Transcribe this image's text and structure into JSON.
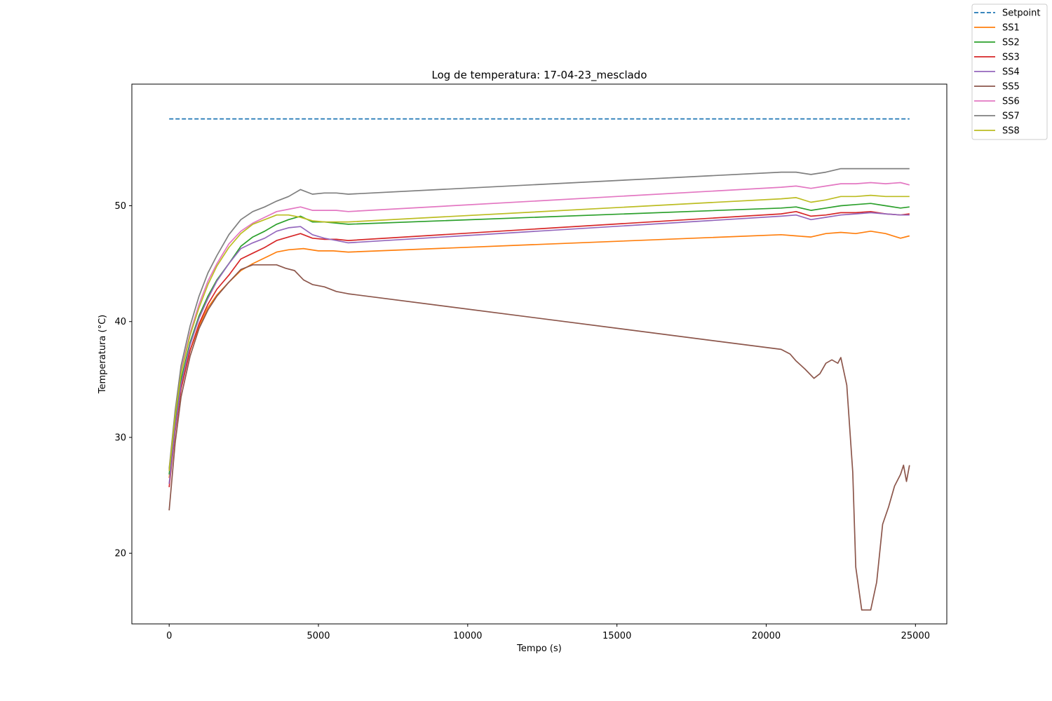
{
  "chart_data": {
    "type": "line",
    "title": "Log de temperatura: 17-04-23_mesclado",
    "xlabel": "Tempo (s)",
    "ylabel": "Temperatura (°C)",
    "xlim": [
      -1250,
      26050
    ],
    "ylim": [
      13.9,
      60.5
    ],
    "xticks": [
      0,
      5000,
      10000,
      15000,
      20000,
      25000
    ],
    "yticks": [
      20,
      30,
      40,
      50
    ],
    "grid": false,
    "legend_position": "top-right, outside plot",
    "series": [
      {
        "name": "Setpoint",
        "color": "#1f77b4",
        "dashed": true,
        "points": [
          [
            0,
            57.5
          ],
          [
            24800,
            57.5
          ]
        ]
      },
      {
        "name": "SS1",
        "color": "#ff7f0e",
        "dashed": false,
        "points": [
          [
            0,
            26.5
          ],
          [
            200,
            31
          ],
          [
            400,
            34.5
          ],
          [
            700,
            37.5
          ],
          [
            1000,
            39.6
          ],
          [
            1300,
            41.2
          ],
          [
            1600,
            42.3
          ],
          [
            2000,
            43.4
          ],
          [
            2400,
            44.4
          ],
          [
            2800,
            45
          ],
          [
            3200,
            45.5
          ],
          [
            3600,
            46
          ],
          [
            4000,
            46.2
          ],
          [
            4500,
            46.3
          ],
          [
            5000,
            46.1
          ],
          [
            5500,
            46.1
          ],
          [
            6000,
            46
          ],
          [
            20500,
            47.5
          ],
          [
            21000,
            47.4
          ],
          [
            21500,
            47.3
          ],
          [
            22000,
            47.6
          ],
          [
            22500,
            47.7
          ],
          [
            23000,
            47.6
          ],
          [
            23500,
            47.8
          ],
          [
            24000,
            47.6
          ],
          [
            24500,
            47.2
          ],
          [
            24800,
            47.4
          ]
        ]
      },
      {
        "name": "SS2",
        "color": "#2ca02c",
        "dashed": false,
        "points": [
          [
            0,
            26.8
          ],
          [
            200,
            31.5
          ],
          [
            400,
            35
          ],
          [
            700,
            38.2
          ],
          [
            1000,
            40.5
          ],
          [
            1300,
            42.2
          ],
          [
            1600,
            43.6
          ],
          [
            2000,
            45
          ],
          [
            2400,
            46.5
          ],
          [
            2800,
            47.3
          ],
          [
            3200,
            47.8
          ],
          [
            3600,
            48.4
          ],
          [
            4000,
            48.8
          ],
          [
            4400,
            49.1
          ],
          [
            4800,
            48.6
          ],
          [
            5200,
            48.6
          ],
          [
            5600,
            48.5
          ],
          [
            6000,
            48.4
          ],
          [
            20500,
            49.8
          ],
          [
            21000,
            49.9
          ],
          [
            21500,
            49.6
          ],
          [
            22000,
            49.8
          ],
          [
            22500,
            50
          ],
          [
            23000,
            50.1
          ],
          [
            23500,
            50.2
          ],
          [
            24000,
            50
          ],
          [
            24500,
            49.8
          ],
          [
            24800,
            49.9
          ]
        ]
      },
      {
        "name": "SS3",
        "color": "#d62728",
        "dashed": false,
        "points": [
          [
            0,
            25.7
          ],
          [
            200,
            30.5
          ],
          [
            400,
            34.2
          ],
          [
            700,
            37.5
          ],
          [
            1000,
            39.8
          ],
          [
            1300,
            41.5
          ],
          [
            1600,
            42.8
          ],
          [
            2000,
            44
          ],
          [
            2400,
            45.4
          ],
          [
            2800,
            45.9
          ],
          [
            3200,
            46.4
          ],
          [
            3600,
            47
          ],
          [
            4000,
            47.3
          ],
          [
            4400,
            47.6
          ],
          [
            4800,
            47.2
          ],
          [
            5200,
            47.1
          ],
          [
            5600,
            47.1
          ],
          [
            6000,
            47
          ],
          [
            20500,
            49.3
          ],
          [
            21000,
            49.5
          ],
          [
            21500,
            49.1
          ],
          [
            22000,
            49.2
          ],
          [
            22500,
            49.4
          ],
          [
            23000,
            49.4
          ],
          [
            23500,
            49.5
          ],
          [
            24000,
            49.3
          ],
          [
            24500,
            49.2
          ],
          [
            24800,
            49.3
          ]
        ]
      },
      {
        "name": "SS4",
        "color": "#9467bd",
        "dashed": false,
        "points": [
          [
            0,
            26
          ],
          [
            200,
            30.8
          ],
          [
            400,
            34.6
          ],
          [
            700,
            38
          ],
          [
            1000,
            40.3
          ],
          [
            1300,
            42
          ],
          [
            1600,
            43.5
          ],
          [
            2000,
            45
          ],
          [
            2400,
            46.3
          ],
          [
            2800,
            46.8
          ],
          [
            3200,
            47.2
          ],
          [
            3600,
            47.8
          ],
          [
            4000,
            48.1
          ],
          [
            4400,
            48.2
          ],
          [
            4800,
            47.5
          ],
          [
            5200,
            47.2
          ],
          [
            5600,
            47
          ],
          [
            6000,
            46.8
          ],
          [
            20500,
            49.1
          ],
          [
            21000,
            49.2
          ],
          [
            21500,
            48.8
          ],
          [
            22000,
            49
          ],
          [
            22500,
            49.2
          ],
          [
            23000,
            49.3
          ],
          [
            23500,
            49.4
          ],
          [
            24000,
            49.3
          ],
          [
            24500,
            49.2
          ],
          [
            24800,
            49.2
          ]
        ]
      },
      {
        "name": "SS5",
        "color": "#8c564b",
        "dashed": false,
        "points": [
          [
            0,
            23.7
          ],
          [
            200,
            29.5
          ],
          [
            400,
            33.5
          ],
          [
            700,
            37
          ],
          [
            1000,
            39.4
          ],
          [
            1300,
            41
          ],
          [
            1600,
            42.2
          ],
          [
            2000,
            43.4
          ],
          [
            2400,
            44.5
          ],
          [
            2800,
            44.9
          ],
          [
            3200,
            44.9
          ],
          [
            3600,
            44.9
          ],
          [
            3900,
            44.6
          ],
          [
            4200,
            44.4
          ],
          [
            4500,
            43.6
          ],
          [
            4800,
            43.2
          ],
          [
            5200,
            43
          ],
          [
            5600,
            42.6
          ],
          [
            6000,
            42.4
          ],
          [
            20500,
            37.6
          ],
          [
            20800,
            37.2
          ],
          [
            21000,
            36.6
          ],
          [
            21300,
            35.9
          ],
          [
            21600,
            35.1
          ],
          [
            21800,
            35.5
          ],
          [
            22000,
            36.4
          ],
          [
            22200,
            36.7
          ],
          [
            22400,
            36.4
          ],
          [
            22500,
            36.9
          ],
          [
            22700,
            34.5
          ],
          [
            22900,
            27
          ],
          [
            23000,
            18.8
          ],
          [
            23200,
            15.1
          ],
          [
            23500,
            15.1
          ],
          [
            23700,
            17.5
          ],
          [
            23900,
            22.5
          ],
          [
            24100,
            24
          ],
          [
            24300,
            25.8
          ],
          [
            24500,
            26.8
          ],
          [
            24600,
            27.6
          ],
          [
            24700,
            26.2
          ],
          [
            24800,
            27.6
          ]
        ]
      },
      {
        "name": "SS6",
        "color": "#e377c2",
        "dashed": false,
        "points": [
          [
            0,
            27.2
          ],
          [
            200,
            32
          ],
          [
            400,
            35.8
          ],
          [
            700,
            39
          ],
          [
            1000,
            41.5
          ],
          [
            1300,
            43.5
          ],
          [
            1600,
            45
          ],
          [
            2000,
            46.7
          ],
          [
            2400,
            47.8
          ],
          [
            2800,
            48.5
          ],
          [
            3200,
            49
          ],
          [
            3600,
            49.5
          ],
          [
            4000,
            49.7
          ],
          [
            4400,
            49.9
          ],
          [
            4800,
            49.6
          ],
          [
            5200,
            49.6
          ],
          [
            5600,
            49.6
          ],
          [
            6000,
            49.5
          ],
          [
            20500,
            51.6
          ],
          [
            21000,
            51.7
          ],
          [
            21500,
            51.5
          ],
          [
            22000,
            51.7
          ],
          [
            22500,
            51.9
          ],
          [
            23000,
            51.9
          ],
          [
            23500,
            52
          ],
          [
            24000,
            51.9
          ],
          [
            24500,
            52
          ],
          [
            24800,
            51.8
          ]
        ]
      },
      {
        "name": "SS7",
        "color": "#7f7f7f",
        "dashed": false,
        "points": [
          [
            0,
            27.3
          ],
          [
            200,
            32.3
          ],
          [
            400,
            36.2
          ],
          [
            700,
            39.6
          ],
          [
            1000,
            42.2
          ],
          [
            1300,
            44.2
          ],
          [
            1600,
            45.7
          ],
          [
            2000,
            47.5
          ],
          [
            2400,
            48.8
          ],
          [
            2800,
            49.5
          ],
          [
            3200,
            49.9
          ],
          [
            3600,
            50.4
          ],
          [
            4000,
            50.8
          ],
          [
            4400,
            51.4
          ],
          [
            4800,
            51
          ],
          [
            5200,
            51.1
          ],
          [
            5600,
            51.1
          ],
          [
            6000,
            51
          ],
          [
            20500,
            52.9
          ],
          [
            21000,
            52.9
          ],
          [
            21500,
            52.7
          ],
          [
            22000,
            52.9
          ],
          [
            22500,
            53.2
          ],
          [
            23000,
            53.2
          ],
          [
            23500,
            53.2
          ],
          [
            24000,
            53.2
          ],
          [
            24500,
            53.2
          ],
          [
            24800,
            53.2
          ]
        ]
      },
      {
        "name": "SS8",
        "color": "#bcbd22",
        "dashed": false,
        "points": [
          [
            0,
            27.1
          ],
          [
            200,
            31.8
          ],
          [
            400,
            35.5
          ],
          [
            700,
            38.8
          ],
          [
            1000,
            41.2
          ],
          [
            1300,
            43.2
          ],
          [
            1600,
            44.8
          ],
          [
            2000,
            46.4
          ],
          [
            2400,
            47.6
          ],
          [
            2800,
            48.4
          ],
          [
            3200,
            48.8
          ],
          [
            3600,
            49.2
          ],
          [
            4000,
            49.2
          ],
          [
            4400,
            49
          ],
          [
            4800,
            48.7
          ],
          [
            5200,
            48.6
          ],
          [
            5600,
            48.6
          ],
          [
            6000,
            48.6
          ],
          [
            20500,
            50.6
          ],
          [
            21000,
            50.7
          ],
          [
            21500,
            50.3
          ],
          [
            22000,
            50.5
          ],
          [
            22500,
            50.8
          ],
          [
            23000,
            50.8
          ],
          [
            23500,
            50.9
          ],
          [
            24000,
            50.8
          ],
          [
            24500,
            50.8
          ],
          [
            24800,
            50.8
          ]
        ]
      }
    ]
  }
}
